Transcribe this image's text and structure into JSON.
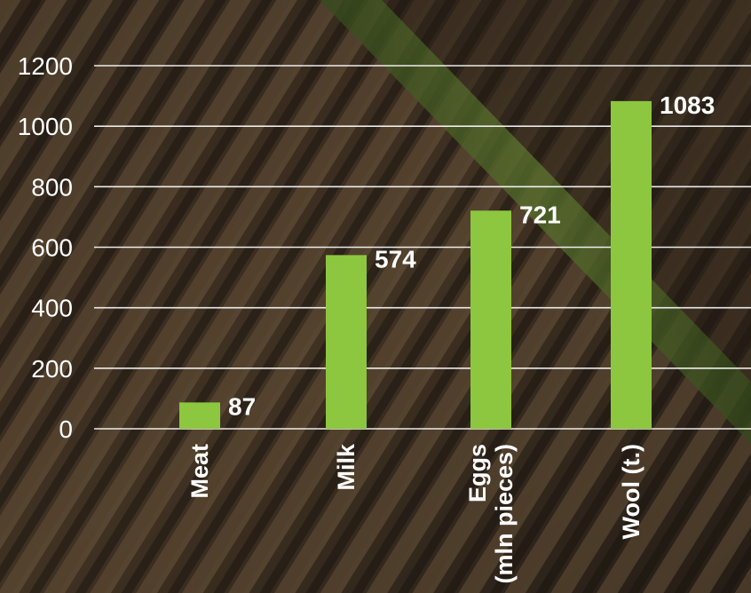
{
  "chart_data": {
    "type": "bar",
    "categories": [
      "Meat",
      "Milk",
      "Eggs (mln pieces)",
      "Wool (t.)"
    ],
    "category_label_lines": [
      [
        "Meat"
      ],
      [
        "Milk"
      ],
      [
        "Eggs",
        "(mln pieces)"
      ],
      [
        "Wool (t.)"
      ]
    ],
    "values": [
      87,
      574,
      721,
      1083
    ],
    "data_labels": [
      "87",
      "574",
      "721",
      "1083"
    ],
    "ylim": [
      0,
      1200
    ],
    "yticks": [
      0,
      200,
      400,
      600,
      800,
      1000,
      1200
    ],
    "ytick_labels": [
      "0",
      "200",
      "400",
      "600",
      "800",
      "1000",
      "1200"
    ],
    "grid": true,
    "title": "",
    "xlabel": "",
    "ylabel": "",
    "colors": {
      "bar": "#8dc63f",
      "grid": "#ffffff",
      "text": "#ffffff",
      "background_soil": "#4a3b2c",
      "background_grass": "#5a7a2e"
    }
  }
}
